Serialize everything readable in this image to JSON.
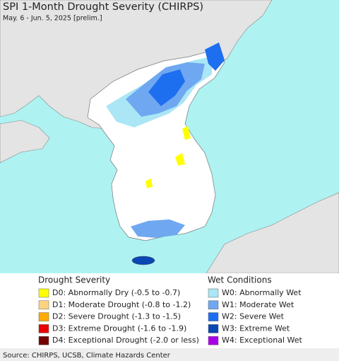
{
  "header": {
    "title": "SPI 1-Month Drought Severity (CHIRPS)",
    "subtitle": "May. 6 - Jun. 5, 2025 [prelim.]"
  },
  "legend": {
    "drought": {
      "title": "Drought Severity",
      "items": [
        {
          "label": "D0: Abnormally Dry (-0.5 to -0.7)",
          "color": "#ffff00"
        },
        {
          "label": "D1: Moderate Drought (-0.8 to -1.2)",
          "color": "#fcd37f"
        },
        {
          "label": "D2: Severe Drought (-1.3 to -1.5)",
          "color": "#ffaa00"
        },
        {
          "label": "D3: Extreme Drought (-1.6 to -1.9)",
          "color": "#e60000"
        },
        {
          "label": "D4: Exceptional Drought (-2.0 or less)",
          "color": "#730000"
        }
      ]
    },
    "wet": {
      "title": "Wet Conditions",
      "items": [
        {
          "label": "W0: Abnormally Wet",
          "color": "#aae6f5"
        },
        {
          "label": "W1: Moderate Wet",
          "color": "#6fa8f0"
        },
        {
          "label": "W2: Severe Wet",
          "color": "#1e6ef0"
        },
        {
          "label": "W3: Extreme Wet",
          "color": "#0a46b4"
        },
        {
          "label": "W4: Exceptional Wet",
          "color": "#aa00e6"
        }
      ]
    }
  },
  "footer": {
    "source": "Source: CHIRPS, UCSB, Climate Hazards Center"
  }
}
